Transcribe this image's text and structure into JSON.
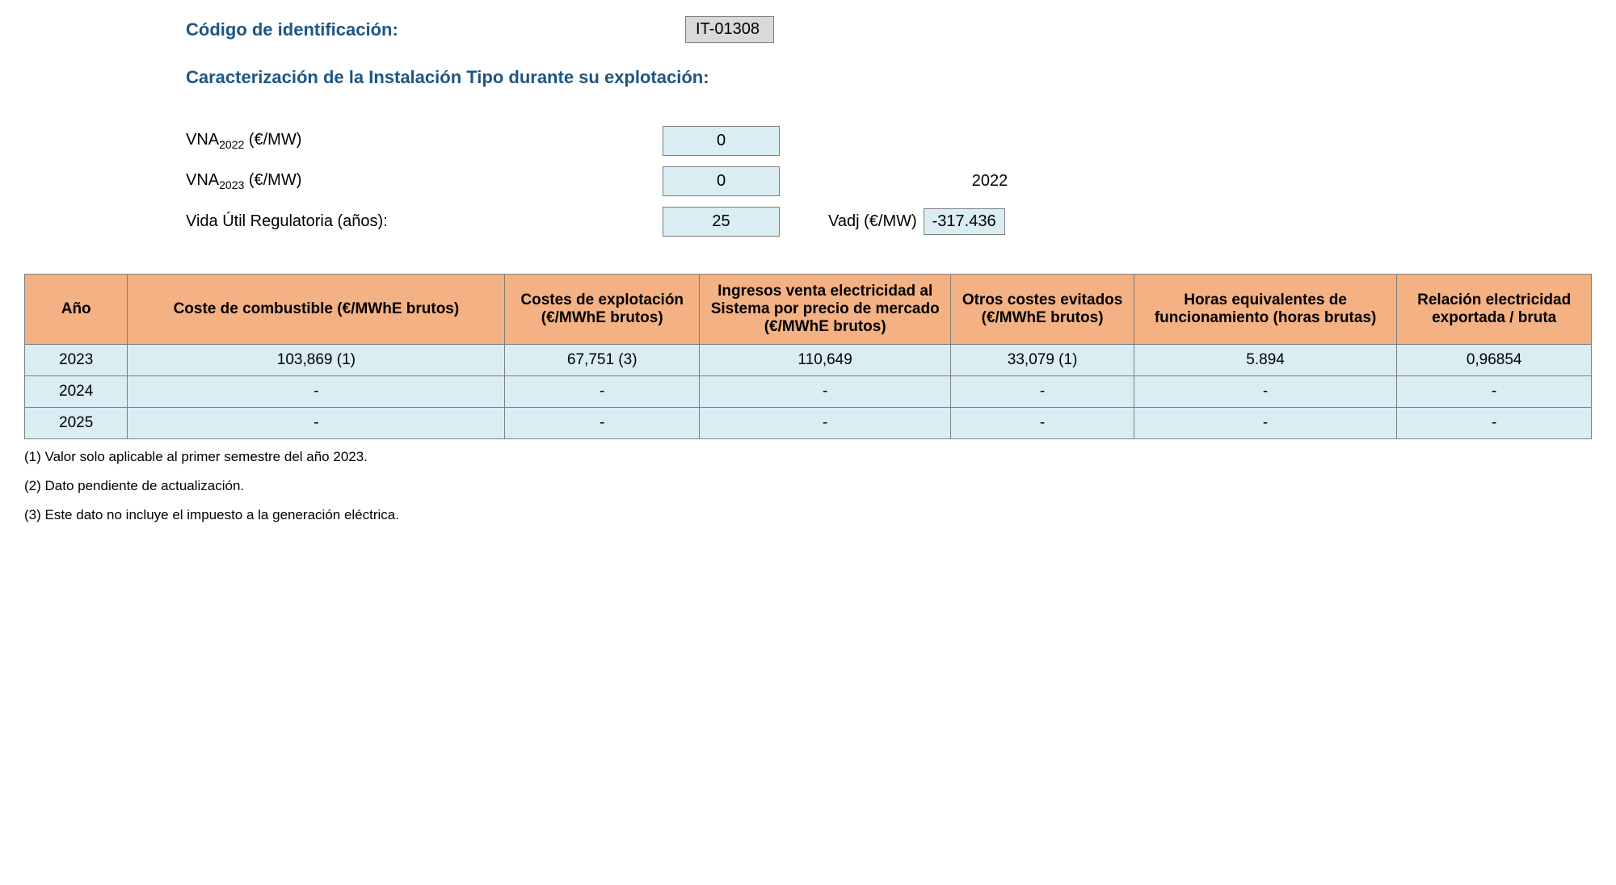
{
  "header": {
    "id_label": "Código de identificación:",
    "id_value": "IT-01308",
    "subtitle": "Caracterización de la Instalación Tipo durante su explotación:"
  },
  "params": {
    "vna2022_label_prefix": "VNA",
    "vna2022_sub": "2022",
    "vna2022_unit": " (€/MW)",
    "vna2022_value": "0",
    "vna2023_label_prefix": "VNA",
    "vna2023_sub": "2023",
    "vna2023_unit": " (€/MW)",
    "vna2023_value": "0",
    "extra_year": "2022",
    "vida_util_label": "Vida Útil Regulatoria (años):",
    "vida_util_value": "25",
    "vadj_label": "Vadj (€/MW)",
    "vadj_value": "-317.436"
  },
  "table": {
    "headers": {
      "year": "Año",
      "fuel": "Coste de combustible (€/MWhE brutos)",
      "op": "Costes de explotación (€/MWhE brutos)",
      "rev": "Ingresos venta electricidad al Sistema por precio de mercado (€/MWhE brutos)",
      "other": "Otros costes evitados (€/MWhE brutos)",
      "hours": "Horas equivalentes de funcionamiento (horas brutas)",
      "ratio": "Relación electricidad exportada / bruta"
    },
    "rows": [
      {
        "year": "2023",
        "fuel": "103,869 (1)",
        "op": "67,751 (3)",
        "rev": "110,649",
        "other": "33,079 (1)",
        "hours": "5.894",
        "ratio": "0,96854"
      },
      {
        "year": "2024",
        "fuel": "-",
        "op": "-",
        "rev": "-",
        "other": "-",
        "hours": "-",
        "ratio": "-"
      },
      {
        "year": "2025",
        "fuel": "-",
        "op": "-",
        "rev": "-",
        "other": "-",
        "hours": "-",
        "ratio": "-"
      }
    ]
  },
  "footnotes": [
    "(1) Valor solo aplicable al primer semestre del año 2023.",
    "(2) Dato pendiente de actualización.",
    "(3) Este dato no incluye el impuesto a la generación eléctrica."
  ],
  "styling": {
    "accent_color": "#1f5582",
    "header_bg": "#f4b183",
    "cell_bg": "#d9edf3",
    "id_box_bg": "#d9d9d9",
    "border_color": "#7f7f7f",
    "body_bg": "#ffffff",
    "base_fontsize": 20,
    "title_fontsize": 22,
    "footnote_fontsize": 17
  }
}
